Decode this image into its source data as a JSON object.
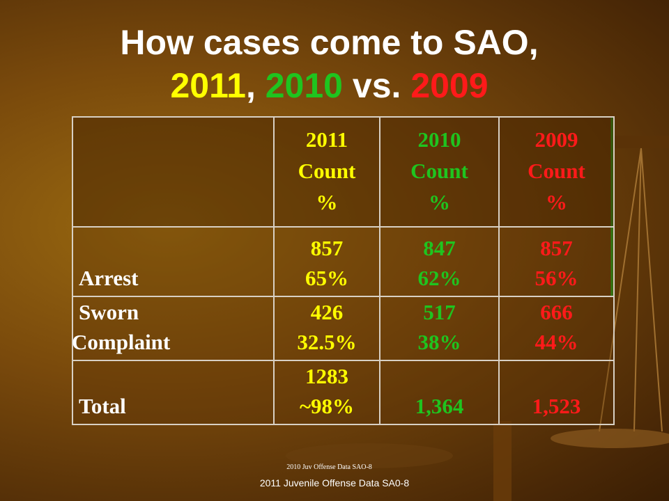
{
  "title": {
    "line1": "How cases come to SAO,",
    "line2": [
      {
        "text": "2011",
        "color": "#ffff00"
      },
      {
        "text": ",",
        "color": "#ffffff"
      },
      {
        "text": "2010",
        "color": "#1fc41f"
      },
      {
        "text": "vs.",
        "color": "#ffffff"
      },
      {
        "text": "2009",
        "color": "#ff1a1a"
      }
    ]
  },
  "table": {
    "columns": [
      {
        "header": [
          "2011",
          "Count",
          "%"
        ],
        "color": "#ffff00"
      },
      {
        "header": [
          "2010",
          "Count",
          "%"
        ],
        "color": "#1fc41f"
      },
      {
        "header": [
          "2009",
          "Count",
          "%"
        ],
        "color": "#ff1a1a"
      }
    ],
    "rows": [
      {
        "label": [
          "Arrest"
        ],
        "cells": [
          [
            "857",
            "65%"
          ],
          [
            "847",
            "62%"
          ],
          [
            "857",
            "56%"
          ]
        ]
      },
      {
        "label": [
          "Sworn",
          "Complaint"
        ],
        "cells": [
          [
            "426",
            "32.5%"
          ],
          [
            "517",
            "38%"
          ],
          [
            "666",
            "44%"
          ]
        ]
      },
      {
        "label": [
          "Total"
        ],
        "cells": [
          [
            "1283",
            "~98%"
          ],
          [
            "1,364"
          ],
          [
            "1,523"
          ]
        ]
      }
    ]
  },
  "footer": {
    "note": "2010 Juv Offense Data  SAO-8",
    "source": "2011 Juvenile Offense Data   SA0-8"
  }
}
